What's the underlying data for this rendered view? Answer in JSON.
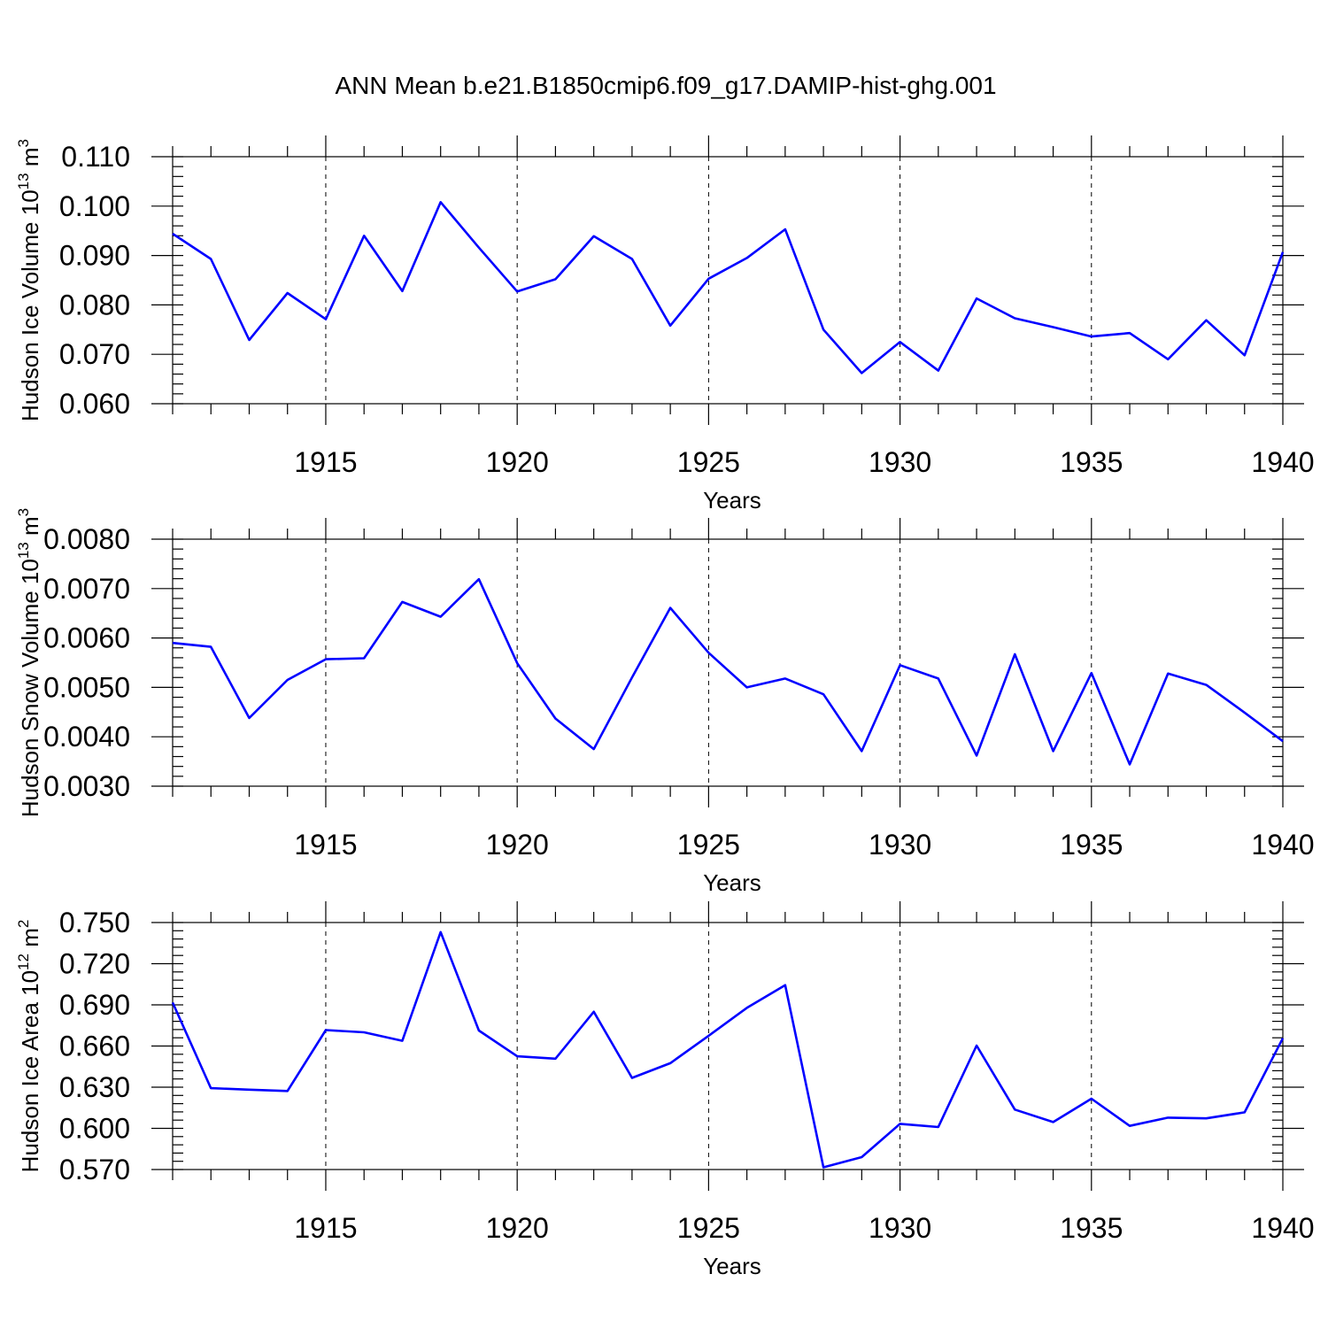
{
  "title": "ANN Mean b.e21.B1850cmip6.f09_g17.DAMIP-hist-ghg.001",
  "line_color": "#0000ff",
  "chart_data": [
    {
      "type": "line",
      "xlabel": "Years",
      "ylabel": {
        "main": "Hudson Ice Volume 10",
        "exp": "13",
        "unit": " m",
        "unit_exp": "3"
      },
      "xlim": [
        1911,
        1940
      ],
      "ylim": [
        0.06,
        0.11
      ],
      "yticks": [
        "0.060",
        "0.070",
        "0.080",
        "0.090",
        "0.100",
        "0.110"
      ],
      "xticks": [
        "1915",
        "1920",
        "1925",
        "1930",
        "1935",
        "1940"
      ],
      "grid": "dashed vertical at major x ticks",
      "x": [
        1911,
        1912,
        1913,
        1914,
        1915,
        1916,
        1917,
        1918,
        1919,
        1920,
        1921,
        1922,
        1923,
        1924,
        1925,
        1926,
        1927,
        1928,
        1929,
        1930,
        1931,
        1932,
        1933,
        1934,
        1935,
        1936,
        1937,
        1938,
        1939,
        1940
      ],
      "values": [
        0.0944,
        0.0893,
        0.0729,
        0.0824,
        0.0771,
        0.094,
        0.0828,
        0.1008,
        0.0916,
        0.0827,
        0.0852,
        0.0939,
        0.0893,
        0.0758,
        0.0853,
        0.0895,
        0.0953,
        0.075,
        0.0662,
        0.0725,
        0.0667,
        0.0813,
        0.0773,
        0.0755,
        0.0736,
        0.0743,
        0.069,
        0.0769,
        0.0698,
        0.0907
      ]
    },
    {
      "type": "line",
      "xlabel": "Years",
      "ylabel": {
        "main": "Hudson Snow Volume 10",
        "exp": "13",
        "unit": " m",
        "unit_exp": "3"
      },
      "xlim": [
        1911,
        1940
      ],
      "ylim": [
        0.003,
        0.008
      ],
      "yticks": [
        "0.0030",
        "0.0040",
        "0.0050",
        "0.0060",
        "0.0070",
        "0.0080"
      ],
      "xticks": [
        "1915",
        "1920",
        "1925",
        "1930",
        "1935",
        "1940"
      ],
      "grid": "dashed vertical at major x ticks",
      "x": [
        1911,
        1912,
        1913,
        1914,
        1915,
        1916,
        1917,
        1918,
        1919,
        1920,
        1921,
        1922,
        1923,
        1924,
        1925,
        1926,
        1927,
        1928,
        1929,
        1930,
        1931,
        1932,
        1933,
        1934,
        1935,
        1936,
        1937,
        1938,
        1939,
        1940
      ],
      "values": [
        0.0059,
        0.00582,
        0.00438,
        0.00515,
        0.00557,
        0.00559,
        0.00673,
        0.00643,
        0.00719,
        0.00549,
        0.00437,
        0.00375,
        0.0052,
        0.00661,
        0.0057,
        0.005,
        0.00518,
        0.00486,
        0.00371,
        0.00545,
        0.00518,
        0.00362,
        0.00567,
        0.00371,
        0.00529,
        0.00344,
        0.00528,
        0.00505,
        0.00449,
        0.00391
      ]
    },
    {
      "type": "line",
      "xlabel": "Years",
      "ylabel": {
        "main": "Hudson Ice Area 10",
        "exp": "12",
        "unit": " m",
        "unit_exp": "2"
      },
      "xlim": [
        1911,
        1940
      ],
      "ylim": [
        0.57,
        0.75
      ],
      "yticks": [
        "0.570",
        "0.600",
        "0.630",
        "0.660",
        "0.690",
        "0.720",
        "0.750"
      ],
      "xticks": [
        "1915",
        "1920",
        "1925",
        "1930",
        "1935",
        "1940"
      ],
      "grid": "dashed vertical at major x ticks",
      "x": [
        1911,
        1912,
        1913,
        1914,
        1915,
        1916,
        1917,
        1918,
        1919,
        1920,
        1921,
        1922,
        1923,
        1924,
        1925,
        1926,
        1927,
        1928,
        1929,
        1930,
        1931,
        1932,
        1933,
        1934,
        1935,
        1936,
        1937,
        1938,
        1939,
        1940
      ],
      "values": [
        0.6917,
        0.6293,
        0.6282,
        0.6272,
        0.6716,
        0.67,
        0.6638,
        0.743,
        0.6713,
        0.6525,
        0.6508,
        0.685,
        0.6368,
        0.6475,
        0.6675,
        0.6878,
        0.7043,
        0.5716,
        0.579,
        0.6033,
        0.601,
        0.6603,
        0.6137,
        0.6046,
        0.6216,
        0.6018,
        0.6078,
        0.6073,
        0.6117,
        0.6657
      ]
    }
  ]
}
